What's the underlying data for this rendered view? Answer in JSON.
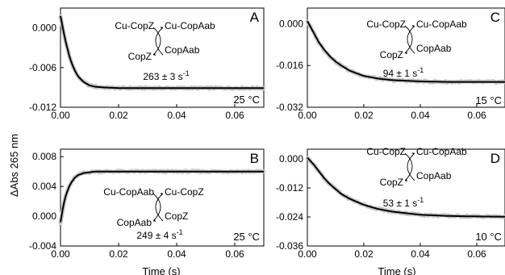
{
  "figure": {
    "shared_ylabel": "ΔAbs 265 nm",
    "xlabel": "Time (s)"
  },
  "chart_data": [
    {
      "panel": "A",
      "type": "line",
      "temperature_label": "25 °C",
      "rate_label": "263 ± 3 s",
      "rate_exponent": "-1",
      "reaction": {
        "top_left": "Cu-CopZ",
        "top_right": "Cu-CopAab",
        "bottom_left": "CopZ",
        "bottom_right": "CopAab"
      },
      "xlim": [
        0,
        0.07
      ],
      "ylim": [
        -0.012,
        0.003
      ],
      "xticks": [
        "0.00",
        "0.02",
        "0.04",
        "0.06"
      ],
      "yticks": [
        "0.000",
        "-0.006",
        "-0.012"
      ],
      "series": [
        {
          "values_x": [
            0,
            0.001,
            0.002,
            0.003,
            0.004,
            0.005,
            0.006,
            0.008,
            0.01,
            0.012,
            0.015,
            0.02,
            0.03,
            0.04,
            0.05,
            0.06,
            0.07
          ],
          "values_y": [
            0.0018,
            -0.0005,
            -0.0025,
            -0.0042,
            -0.0055,
            -0.0065,
            -0.0073,
            -0.0082,
            -0.0087,
            -0.0089,
            -0.009,
            -0.0091,
            -0.0091,
            -0.0091,
            -0.0091,
            -0.0091,
            -0.0091
          ]
        }
      ]
    },
    {
      "panel": "B",
      "type": "line",
      "temperature_label": "25 °C",
      "rate_label": "249 ± 4 s",
      "rate_exponent": "-1",
      "reaction": {
        "top_left": "Cu-CopAab",
        "top_right": "Cu-CopZ",
        "bottom_left": "CopAab",
        "bottom_right": "CopZ"
      },
      "xlim": [
        0,
        0.07
      ],
      "ylim": [
        -0.004,
        0.009
      ],
      "xticks": [
        "0.00",
        "0.02",
        "0.04",
        "0.06"
      ],
      "yticks": [
        "0.008",
        "0.004",
        "0.000",
        "-0.004"
      ],
      "series": [
        {
          "values_x": [
            0,
            0.001,
            0.002,
            0.003,
            0.004,
            0.005,
            0.006,
            0.008,
            0.01,
            0.012,
            0.015,
            0.02,
            0.03,
            0.04,
            0.05,
            0.06,
            0.07
          ],
          "values_y": [
            -0.0008,
            0.0015,
            0.003,
            0.004,
            0.0047,
            0.0052,
            0.0055,
            0.0058,
            0.0059,
            0.006,
            0.006,
            0.006,
            0.006,
            0.006,
            0.006,
            0.006,
            0.006
          ]
        }
      ]
    },
    {
      "panel": "C",
      "type": "line",
      "temperature_label": "15 °C",
      "rate_label": "94 ± 1 s",
      "rate_exponent": "-1",
      "reaction": {
        "top_left": "Cu-CopZ",
        "top_right": "Cu-CopAab",
        "bottom_left": "CopZ",
        "bottom_right": "CopAab"
      },
      "xlim": [
        0,
        0.07
      ],
      "ylim": [
        -0.032,
        0.006
      ],
      "xticks": [
        "0.00",
        "0.02",
        "0.04",
        "0.06"
      ],
      "yticks": [
        "0.000",
        "-0.016",
        "-0.032"
      ],
      "series": [
        {
          "values_x": [
            0,
            0.002,
            0.004,
            0.006,
            0.008,
            0.01,
            0.012,
            0.015,
            0.02,
            0.025,
            0.03,
            0.04,
            0.05,
            0.06,
            0.07
          ],
          "values_y": [
            0.001,
            -0.003,
            -0.007,
            -0.01,
            -0.0125,
            -0.0145,
            -0.016,
            -0.018,
            -0.02,
            -0.021,
            -0.0216,
            -0.0221,
            -0.0223,
            -0.0223,
            -0.0223
          ]
        }
      ]
    },
    {
      "panel": "D",
      "type": "line",
      "temperature_label": "10 °C",
      "rate_label": "53 ± 1 s",
      "rate_exponent": "-1",
      "reaction": {
        "top_left": "Cu-CopZ",
        "top_right": "Cu-CopAab",
        "bottom_left": "CopZ",
        "bottom_right": "CopAab"
      },
      "xlim": [
        0,
        0.07
      ],
      "ylim": [
        -0.036,
        0.004
      ],
      "xticks": [
        "0.00",
        "0.02",
        "0.04",
        "0.06"
      ],
      "yticks": [
        "0.000",
        "-0.012",
        "-0.024",
        "-0.036"
      ],
      "series": [
        {
          "values_x": [
            0,
            0.002,
            0.004,
            0.006,
            0.008,
            0.01,
            0.012,
            0.015,
            0.02,
            0.025,
            0.03,
            0.04,
            0.05,
            0.06,
            0.07
          ],
          "values_y": [
            0.0005,
            -0.002,
            -0.005,
            -0.008,
            -0.0105,
            -0.0125,
            -0.0145,
            -0.0165,
            -0.019,
            -0.0207,
            -0.0218,
            -0.0231,
            -0.0236,
            -0.0238,
            -0.0239
          ]
        }
      ]
    }
  ]
}
